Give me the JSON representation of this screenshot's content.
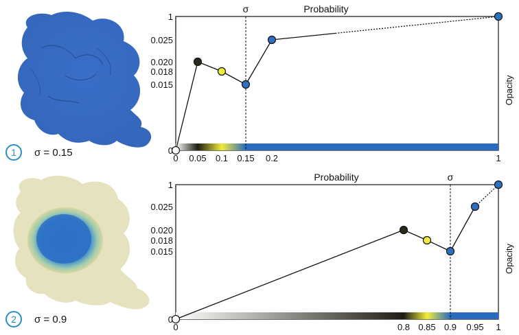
{
  "panels": [
    {
      "badge": "1",
      "sigma_label": "σ = 0.15",
      "thumbnail_icon": "blue-volume-blob-icon",
      "chart": {
        "x_axis_label": "Probability",
        "y_axis_label": "Opacity",
        "sigma_marker": "σ",
        "sigma_value": 0.15,
        "y_ticks": [
          "1",
          "0.025",
          "0.020",
          "0.018",
          "0.015",
          "0"
        ],
        "x_ticks": [
          "0",
          "0.05",
          "0.1",
          "0.15",
          "0.2",
          "1"
        ],
        "x_tick_values": [
          0,
          0.05,
          0.1,
          0.15,
          0.2,
          1
        ],
        "points": [
          {
            "x": 0,
            "y": "0",
            "color": "#ffffff"
          },
          {
            "x": 0.05,
            "y": "0.020",
            "color": "#2a2a1e"
          },
          {
            "x": 0.1,
            "y": "0.018",
            "color": "#f2ec3c"
          },
          {
            "x": 0.15,
            "y": "0.015",
            "color": "#2f6fbf"
          },
          {
            "x": 0.2,
            "y": "0.025",
            "color": "#2f6fbf"
          },
          {
            "x": 1,
            "y": "1",
            "color": "#2f6fbf"
          }
        ],
        "gradient": [
          {
            "x": 0,
            "color": "#ffffff"
          },
          {
            "x": 0.05,
            "color": "#1e1e14"
          },
          {
            "x": 0.1,
            "color": "#f2ec3c"
          },
          {
            "x": 0.15,
            "color": "#2a6bc0"
          },
          {
            "x": 1,
            "color": "#2a6bc0"
          }
        ]
      }
    },
    {
      "badge": "2",
      "sigma_label": "σ = 0.9",
      "thumbnail_icon": "beige-volume-blob-icon",
      "chart": {
        "x_axis_label": "Probability",
        "y_axis_label": "Opacity",
        "sigma_marker": "σ",
        "sigma_value": 0.9,
        "y_ticks": [
          "1",
          "0.025",
          "0.020",
          "0.018",
          "0.015",
          "0"
        ],
        "x_ticks": [
          "0",
          "0.8",
          "0.85",
          "0.9",
          "0.95",
          "1"
        ],
        "x_tick_values": [
          0,
          0.8,
          0.85,
          0.9,
          0.95,
          1
        ],
        "points": [
          {
            "x": 0,
            "y": "0",
            "color": "#ffffff"
          },
          {
            "x": 0.8,
            "y": "0.020",
            "color": "#2a2a1e"
          },
          {
            "x": 0.85,
            "y": "0.018",
            "color": "#f2ec3c"
          },
          {
            "x": 0.9,
            "y": "0.015",
            "color": "#2f6fbf"
          },
          {
            "x": 0.95,
            "y": "0.025",
            "color": "#2f6fbf"
          },
          {
            "x": 1,
            "y": "1",
            "color": "#2f6fbf"
          }
        ],
        "gradient": [
          {
            "x": 0,
            "color": "#ffffff"
          },
          {
            "x": 0.8,
            "color": "#1e1e14"
          },
          {
            "x": 0.85,
            "color": "#f2ec3c"
          },
          {
            "x": 0.9,
            "color": "#2a6bc0"
          },
          {
            "x": 1,
            "color": "#2a6bc0"
          }
        ]
      }
    }
  ]
}
